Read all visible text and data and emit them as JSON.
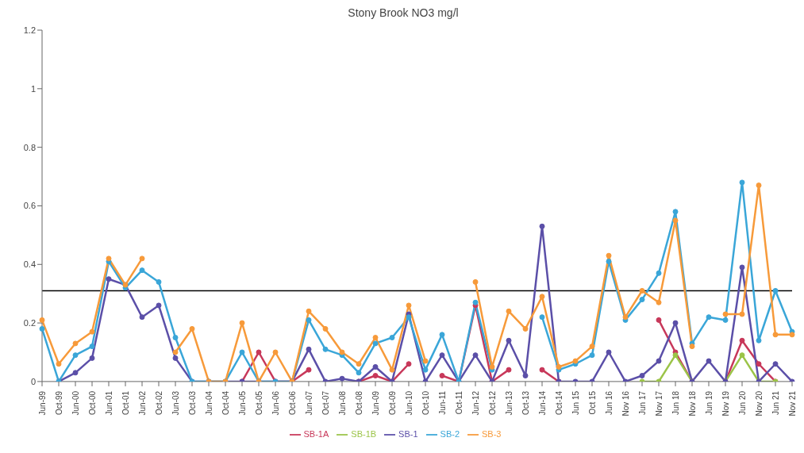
{
  "chart_data": {
    "type": "line",
    "title": "Stony Brook NO3 mg/l",
    "categories": [
      "Jun-99",
      "Oct-99",
      "Jun-00",
      "Oct-00",
      "Jun-01",
      "Oct-01",
      "Jun-02",
      "Oct-02",
      "Jun-03",
      "Oct-03",
      "Jun-04",
      "Oct-04",
      "Jun-05",
      "Oct-05",
      "Jun-06",
      "Oct-06",
      "Jun-07",
      "Oct-07",
      "Jun-08",
      "Oct-08",
      "Jun-09",
      "Oct-09",
      "Jun-10",
      "Oct-10",
      "Jun-11",
      "Oct-11",
      "Jun-12",
      "Oct-12",
      "Jun-13",
      "Oct-13",
      "Jun-14",
      "Oct-14",
      "Jun 15",
      "Oct 15",
      "Jun 16",
      "Nov 16",
      "Jun 17",
      "Nov 17",
      "Jun 18",
      "Nov 18",
      "Jun 19",
      "Nov 19",
      "Jun 20",
      "Nov 20",
      "Jun 21",
      "Nov 21"
    ],
    "series": [
      {
        "name": "SB-1A",
        "color": "#c8385a",
        "values": [
          null,
          null,
          null,
          null,
          null,
          null,
          null,
          null,
          null,
          null,
          null,
          null,
          0,
          0.1,
          0,
          0,
          0.04,
          null,
          null,
          0,
          0.02,
          0,
          0.06,
          null,
          0.02,
          0,
          0.26,
          0,
          0.04,
          null,
          0.04,
          0,
          null,
          null,
          null,
          null,
          null,
          0.21,
          0.1,
          0,
          null,
          0,
          0.14,
          0.06,
          0,
          null
        ]
      },
      {
        "name": "SB-1B",
        "color": "#9bc448",
        "values": [
          null,
          null,
          null,
          null,
          null,
          null,
          null,
          null,
          null,
          null,
          null,
          null,
          null,
          null,
          null,
          null,
          null,
          null,
          null,
          null,
          null,
          null,
          null,
          null,
          null,
          null,
          null,
          null,
          null,
          null,
          null,
          null,
          null,
          null,
          null,
          null,
          0,
          0,
          0.09,
          0,
          null,
          0,
          0.09,
          0,
          0,
          null
        ]
      },
      {
        "name": "SB-1",
        "color": "#5b4fa8",
        "values": [
          null,
          0,
          0.03,
          0.08,
          0.35,
          0.33,
          0.22,
          0.26,
          0.08,
          0,
          0,
          0,
          0,
          0,
          0,
          0,
          0.11,
          0,
          0.01,
          0,
          0.05,
          0,
          0.23,
          0,
          0.09,
          0,
          0.09,
          0,
          0.14,
          0.02,
          0.53,
          0,
          0,
          0,
          0.1,
          0,
          0.02,
          0.07,
          0.2,
          0,
          0.07,
          0,
          0.39,
          0,
          0.06,
          0
        ]
      },
      {
        "name": "SB-2",
        "color": "#3aa6d8",
        "values": [
          0.18,
          0,
          0.09,
          0.12,
          0.41,
          0.32,
          0.38,
          0.34,
          0.15,
          0,
          0,
          0,
          0.1,
          0,
          0,
          0,
          0.21,
          0.11,
          0.09,
          0.03,
          0.13,
          0.15,
          0.22,
          0.04,
          0.16,
          0,
          0.27,
          0.04,
          null,
          null,
          0.22,
          0.04,
          0.06,
          0.09,
          0.41,
          0.21,
          0.28,
          0.37,
          0.58,
          0.13,
          0.22,
          0.21,
          0.68,
          0.14,
          0.31,
          0.17
        ]
      },
      {
        "name": "SB-3",
        "color": "#f79a3a",
        "values": [
          0.21,
          0.06,
          0.13,
          0.17,
          0.42,
          0.33,
          0.42,
          null,
          0.1,
          0.18,
          0,
          0,
          0.2,
          0,
          0.1,
          0,
          0.24,
          0.18,
          0.1,
          0.06,
          0.15,
          0.04,
          0.26,
          0.07,
          null,
          null,
          0.34,
          0.05,
          0.24,
          0.18,
          0.29,
          0.05,
          0.07,
          0.12,
          0.43,
          0.22,
          0.31,
          0.27,
          0.55,
          0.12,
          null,
          0.23,
          0.23,
          0.67,
          0.16,
          0.16
        ]
      }
    ],
    "ylim": [
      0,
      1.2
    ],
    "yticks": [
      0,
      0.2,
      0.4,
      0.6,
      0.8,
      1,
      1.2
    ],
    "ref_lines": [
      {
        "axis": "y",
        "value": 0.31,
        "color": "#000000"
      }
    ],
    "legend": "bottom",
    "marker": "circle",
    "line_style": "solid"
  }
}
